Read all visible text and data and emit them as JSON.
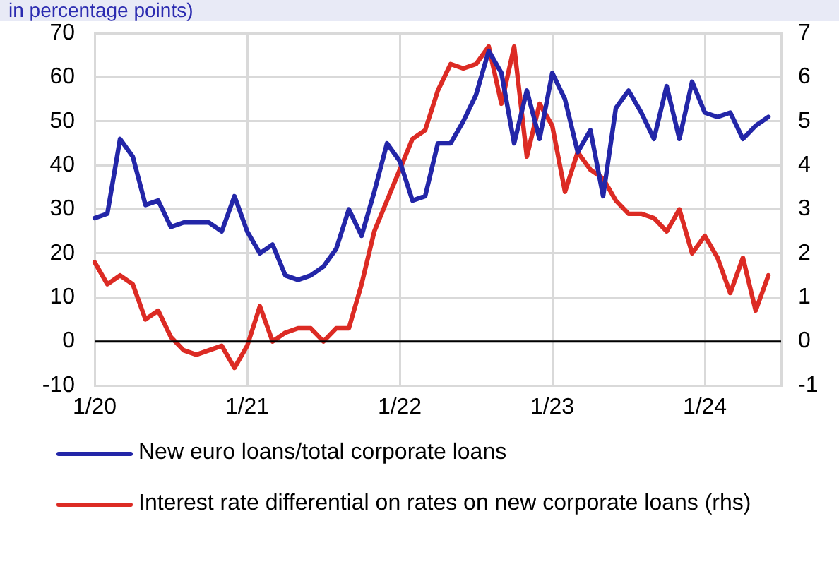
{
  "chart_data": {
    "type": "line",
    "title": "in percentage points)",
    "categories": [
      "1/20",
      null,
      null,
      null,
      null,
      null,
      null,
      null,
      null,
      null,
      null,
      null,
      "1/21",
      null,
      null,
      null,
      null,
      null,
      null,
      null,
      null,
      null,
      null,
      null,
      "1/22",
      null,
      null,
      null,
      null,
      null,
      null,
      null,
      null,
      null,
      null,
      null,
      "1/23",
      null,
      null,
      null,
      null,
      null,
      null,
      null,
      null,
      null,
      null,
      null,
      "1/24",
      null,
      null,
      null,
      null,
      null,
      null
    ],
    "series": [
      {
        "name": "New euro loans/total corporate loans",
        "color": "#2326a8",
        "values": [
          28,
          29,
          46,
          42,
          31,
          32,
          26,
          27,
          27,
          27,
          25,
          33,
          25,
          20,
          22,
          15,
          14,
          15,
          17,
          21,
          30,
          24,
          34,
          45,
          41,
          32,
          33,
          45,
          45,
          50,
          56,
          66,
          61,
          45,
          57,
          46,
          61,
          55,
          43,
          48,
          33,
          53,
          57,
          52,
          46,
          58,
          46,
          59,
          52,
          51,
          52,
          46,
          49,
          51,
          null
        ]
      },
      {
        "name": "Interest rate differential on rates on new corporate loans (rhs)",
        "color": "#dc2b24",
        "axis": "y2",
        "values": [
          1.8,
          1.3,
          1.5,
          1.3,
          0.5,
          0.7,
          0.1,
          -0.2,
          -0.3,
          -0.2,
          -0.1,
          -0.6,
          -0.1,
          0.8,
          0.0,
          0.2,
          0.3,
          0.3,
          0.0,
          0.3,
          0.3,
          1.3,
          2.5,
          3.2,
          3.9,
          4.6,
          4.8,
          5.7,
          6.3,
          6.2,
          6.3,
          6.7,
          5.4,
          6.7,
          4.2,
          5.4,
          4.9,
          3.4,
          4.3,
          3.9,
          3.7,
          3.2,
          2.9,
          2.9,
          2.8,
          2.5,
          3.0,
          2.0,
          2.4,
          1.9,
          1.1,
          1.9,
          0.7,
          1.5,
          null
        ]
      }
    ],
    "ylim": [
      -10,
      70
    ],
    "yticks": [
      -10,
      0,
      10,
      20,
      30,
      40,
      50,
      60,
      70
    ],
    "y2lim": [
      -1,
      7
    ],
    "y2ticks": [
      -1,
      0,
      1,
      2,
      3,
      4,
      5,
      6,
      7
    ],
    "ref_lines": [
      {
        "axis": "y",
        "value": 0,
        "color": "#000000"
      }
    ],
    "grid": true,
    "legend": "bottom",
    "marker": "none",
    "line_style": "solid"
  }
}
